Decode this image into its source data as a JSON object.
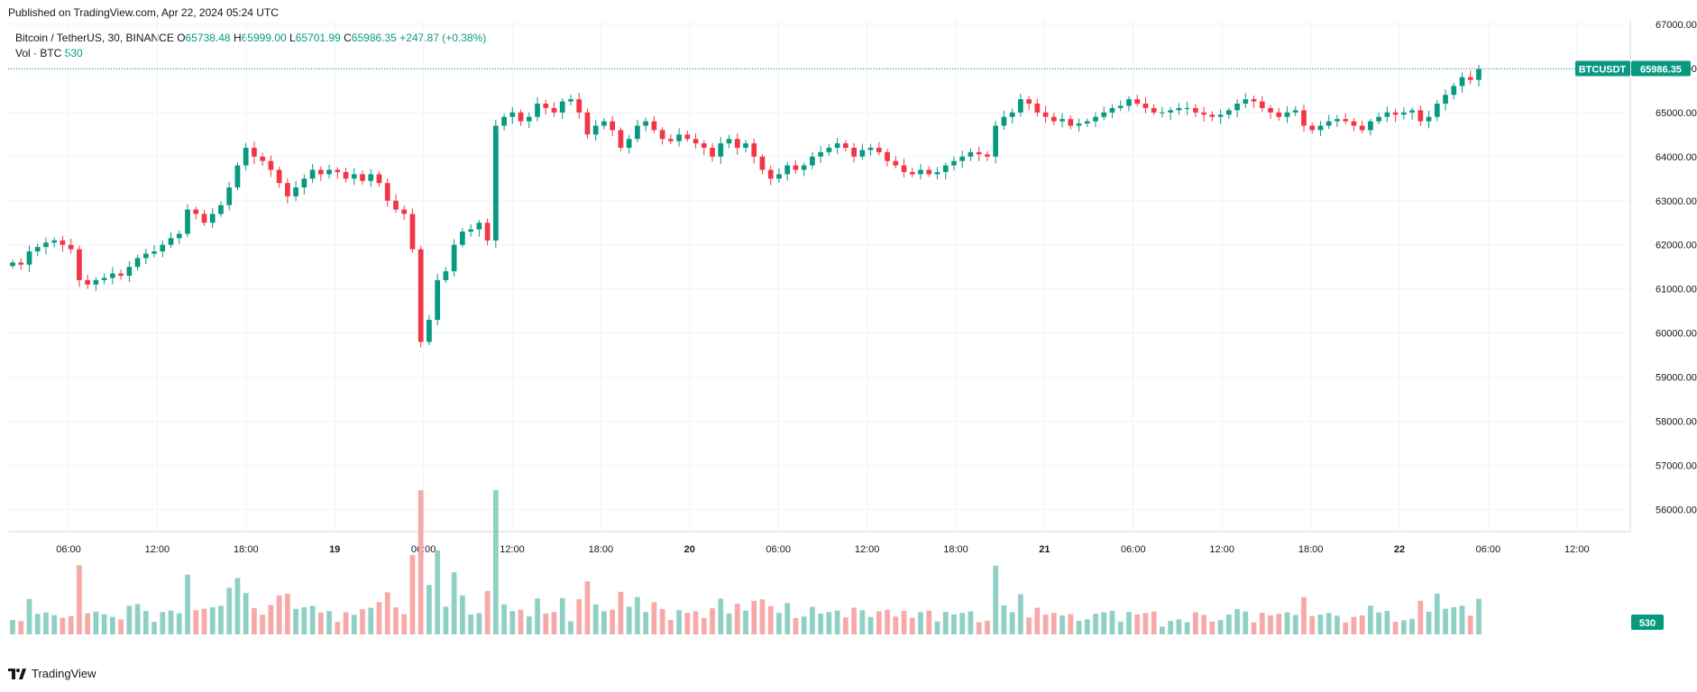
{
  "header": {
    "published": "Published on TradingView.com, Apr 22, 2024 05:24 UTC"
  },
  "legend": {
    "symbol": "Bitcoin / TetherUS, 30, BINANCE",
    "o_label": "O",
    "o": "65738.48",
    "h_label": "H",
    "h": "65999.00",
    "l_label": "L",
    "l": "65701.99",
    "c_label": "C",
    "c": "65986.35",
    "change": "+247.87 (+0.38%)",
    "vol_label": "Vol · BTC",
    "vol_value": "530"
  },
  "footer": {
    "brand": "TradingView"
  },
  "colors": {
    "up": "#089981",
    "down": "#f23645",
    "vol_up": "#8fd0c5",
    "vol_down": "#f7a9a7",
    "grid": "#f0f3fa",
    "axis_text": "#131722"
  },
  "chart_data": {
    "type": "candlestick",
    "title": "Bitcoin / TetherUS, 30, BINANCE",
    "price_axis": {
      "ticks": [
        "67000.00",
        "66000.00",
        "65000.00",
        "64000.00",
        "63000.00",
        "62000.00",
        "61000.00",
        "60000.00",
        "59000.00",
        "58000.00",
        "57000.00",
        "56000.00"
      ],
      "range": [
        55500,
        67100
      ]
    },
    "time_axis": {
      "ticks": [
        "06:00",
        "12:00",
        "18:00",
        "19",
        "06:00",
        "12:00",
        "18:00",
        "20",
        "06:00",
        "12:00",
        "18:00",
        "21",
        "06:00",
        "12:00",
        "18:00",
        "22",
        "06:00",
        "12:00"
      ],
      "bold": [
        3,
        7,
        11,
        15
      ]
    },
    "last_price": {
      "symbol_label": "BTCUSDT",
      "value": "65986.35",
      "price": 65986.35
    },
    "last_volume": {
      "value": "530",
      "volume": 530
    },
    "series": [
      {
        "name": "price",
        "close": [
          61600,
          61550,
          61850,
          61950,
          62050,
          62100,
          62000,
          61900,
          61200,
          61100,
          61200,
          61250,
          61350,
          61300,
          61500,
          61700,
          61800,
          61850,
          62000,
          62150,
          62250,
          62800,
          62700,
          62500,
          62700,
          62900,
          63300,
          63800,
          64200,
          64000,
          63900,
          63700,
          63400,
          63100,
          63300,
          63500,
          63700,
          63600,
          63700,
          63650,
          63500,
          63600,
          63450,
          63600,
          63400,
          63000,
          62800,
          62700,
          61900,
          59800,
          60300,
          61200,
          61400,
          62000,
          62300,
          62350,
          62500,
          62100,
          64700,
          64900,
          65000,
          64800,
          64900,
          65200,
          65100,
          65000,
          65250,
          65300,
          65000,
          64500,
          64700,
          64800,
          64600,
          64200,
          64400,
          64700,
          64800,
          64600,
          64400,
          64350,
          64500,
          64400,
          64300,
          64200,
          64000,
          64300,
          64400,
          64200,
          64300,
          64000,
          63700,
          63500,
          63600,
          63800,
          63700,
          63800,
          64000,
          64100,
          64200,
          64300,
          64200,
          64000,
          64150,
          64200,
          64100,
          63900,
          63800,
          63650,
          63600,
          63700,
          63600,
          63650,
          63800,
          63900,
          64000,
          64100,
          64050,
          64000,
          64700,
          64900,
          65000,
          65300,
          65200,
          65000,
          64900,
          64800,
          64850,
          64700,
          64750,
          64800,
          64900,
          65000,
          65100,
          65150,
          65300,
          65200,
          65100,
          65000,
          65000,
          65050,
          65100,
          65100,
          65000,
          64950,
          64900,
          64950,
          65050,
          65200,
          65300,
          65250,
          65100,
          65000,
          64900,
          65000,
          65050,
          64700,
          64600,
          64700,
          64800,
          64850,
          64800,
          64700,
          64600,
          64800,
          64900,
          65000,
          64950,
          65000,
          65050,
          64800,
          64900,
          65200,
          65400,
          65600,
          65800,
          65738,
          65986
        ]
      }
    ]
  }
}
